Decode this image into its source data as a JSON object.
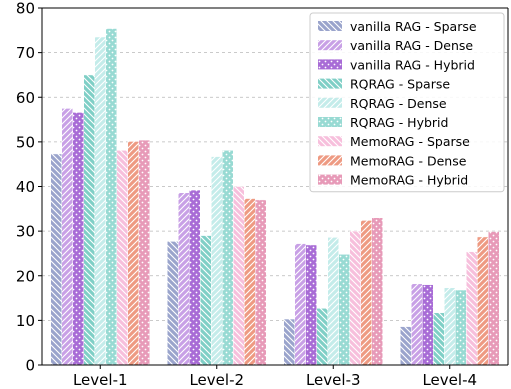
{
  "chart_data": {
    "type": "bar",
    "categories": [
      "Level-1",
      "Level-2",
      "Level-3",
      "Level-4"
    ],
    "ylim": [
      0,
      80
    ],
    "yticks": [
      0,
      10,
      20,
      30,
      40,
      50,
      60,
      70,
      80
    ],
    "grid": "horizontal dashed",
    "legend_position": "top-right",
    "series": [
      {
        "name": "vanilla RAG - Sparse",
        "color": "#9aa4cc",
        "pattern": "back-diagonal",
        "values": [
          47.3,
          27.7,
          10.3,
          8.6
        ]
      },
      {
        "name": "vanilla RAG - Dense",
        "color": "#c8a0e6",
        "pattern": "diagonal",
        "values": [
          57.5,
          38.6,
          27.2,
          18.2
        ]
      },
      {
        "name": "vanilla RAG - Hybrid",
        "color": "#a86cd6",
        "pattern": "dots",
        "values": [
          56.6,
          39.2,
          26.9,
          18.0
        ]
      },
      {
        "name": "RQRAG - Sparse",
        "color": "#7fcfc6",
        "pattern": "back-diagonal",
        "values": [
          65.0,
          29.0,
          12.7,
          11.7
        ]
      },
      {
        "name": "RQRAG - Dense",
        "color": "#c4ecea",
        "pattern": "diagonal",
        "values": [
          73.5,
          46.7,
          28.6,
          17.3
        ]
      },
      {
        "name": "RQRAG - Hybrid",
        "color": "#98dad3",
        "pattern": "dots",
        "values": [
          75.4,
          48.1,
          24.8,
          16.8
        ]
      },
      {
        "name": "MemoRAG - Sparse",
        "color": "#f7bfdc",
        "pattern": "back-diagonal",
        "values": [
          48.1,
          40.0,
          30.0,
          25.4
        ]
      },
      {
        "name": "MemoRAG - Dense",
        "color": "#ee9a82",
        "pattern": "diagonal",
        "values": [
          50.1,
          37.3,
          32.4,
          28.7
        ]
      },
      {
        "name": "MemoRAG - Hybrid",
        "color": "#e79ab8",
        "pattern": "dots",
        "values": [
          50.4,
          37.0,
          33.0,
          29.9
        ]
      }
    ]
  }
}
